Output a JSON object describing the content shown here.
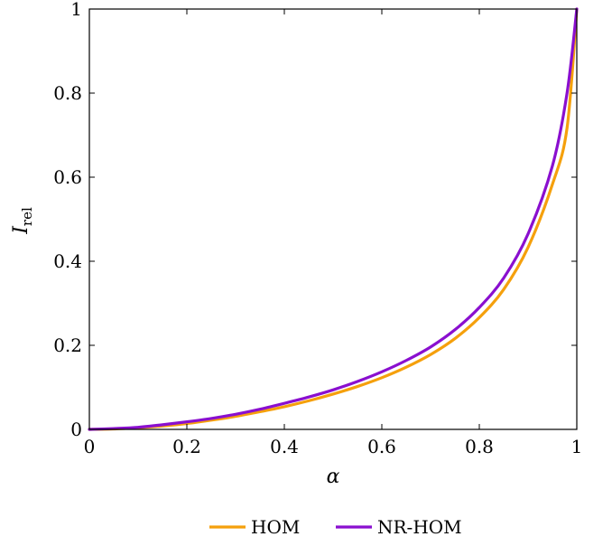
{
  "chart_data": {
    "type": "line",
    "xlabel": "α",
    "ylabel_main": "I",
    "ylabel_sub": "rel",
    "xlim": [
      0,
      1
    ],
    "ylim": [
      0,
      1
    ],
    "x_ticks": [
      0,
      0.2,
      0.4,
      0.6,
      0.8,
      1
    ],
    "x_tick_labels": [
      "0",
      "0.2",
      "0.4",
      "0.6",
      "0.8",
      "1"
    ],
    "y_ticks": [
      0,
      0.2,
      0.4,
      0.6,
      0.8,
      1
    ],
    "y_tick_labels": [
      "0",
      "0.2",
      "0.4",
      "0.6",
      "0.8",
      "1"
    ],
    "grid": false,
    "legend_position": "bottom",
    "x": [
      0,
      0.05,
      0.1,
      0.15,
      0.2,
      0.25,
      0.3,
      0.35,
      0.4,
      0.45,
      0.5,
      0.55,
      0.6,
      0.65,
      0.7,
      0.75,
      0.8,
      0.85,
      0.9,
      0.95,
      0.98,
      1
    ],
    "series": [
      {
        "name": "HOM",
        "color": "#f5a00c",
        "values": [
          0,
          0.001,
          0.004,
          0.008,
          0.014,
          0.022,
          0.031,
          0.042,
          0.054,
          0.068,
          0.084,
          0.102,
          0.123,
          0.148,
          0.178,
          0.216,
          0.266,
          0.333,
          0.433,
          0.583,
          0.717,
          1.0
        ]
      },
      {
        "name": "NR-HOM",
        "color": "#8a0fcf",
        "values": [
          0,
          0.002,
          0.005,
          0.011,
          0.018,
          0.026,
          0.036,
          0.048,
          0.062,
          0.077,
          0.094,
          0.114,
          0.137,
          0.164,
          0.196,
          0.237,
          0.29,
          0.36,
          0.465,
          0.627,
          0.8,
          1.0
        ]
      }
    ]
  }
}
